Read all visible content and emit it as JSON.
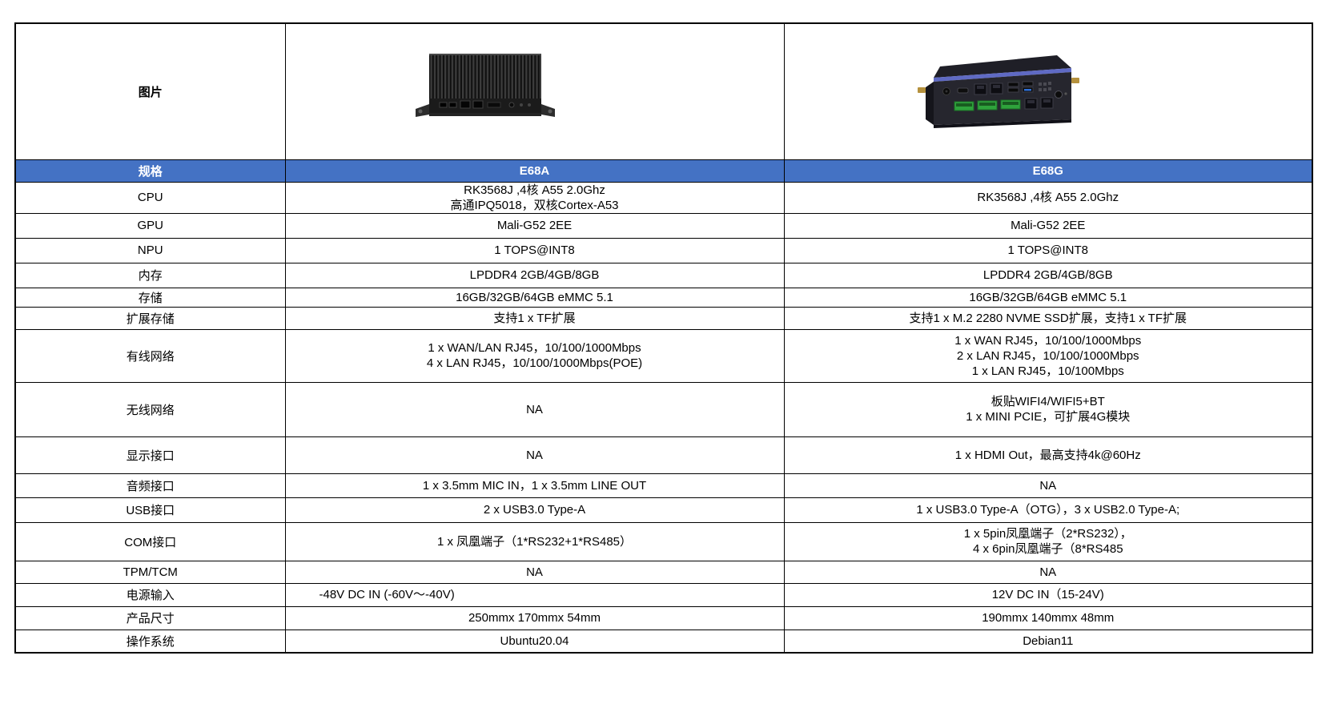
{
  "table": {
    "image_label": "图片",
    "header": {
      "spec": "规格",
      "e68a": "E68A",
      "e68g": "E68G"
    },
    "rows": [
      {
        "label": "CPU",
        "a": [
          "RK3568J ,4核 A55 2.0Ghz",
          "高通IPQ5018，双核Cortex-A53"
        ],
        "b": [
          "RK3568J ,4核 A55 2.0Ghz"
        ]
      },
      {
        "label": "GPU",
        "a": [
          "Mali-G52 2EE"
        ],
        "b": [
          "Mali-G52 2EE"
        ]
      },
      {
        "label": "NPU",
        "a": [
          "1 TOPS@INT8"
        ],
        "b": [
          "1 TOPS@INT8"
        ]
      },
      {
        "label": "内存",
        "a": [
          "LPDDR4 2GB/4GB/8GB"
        ],
        "b": [
          "LPDDR4 2GB/4GB/8GB"
        ]
      },
      {
        "label": "存储",
        "a": [
          "16GB/32GB/64GB eMMC 5.1"
        ],
        "b": [
          "16GB/32GB/64GB eMMC 5.1"
        ]
      },
      {
        "label": "扩展存储",
        "a": [
          "支持1 x TF扩展"
        ],
        "b": [
          "支持1 x M.2 2280 NVME SSD扩展，支持1 x TF扩展"
        ]
      },
      {
        "label": "有线网络",
        "a": [
          "1 x WAN/LAN RJ45，10/100/1000Mbps",
          "4 x LAN RJ45，10/100/1000Mbps(POE)"
        ],
        "b": [
          "1 x WAN RJ45，10/100/1000Mbps",
          "2 x LAN RJ45，10/100/1000Mbps",
          "1 x LAN RJ45，10/100Mbps"
        ]
      },
      {
        "label": "无线网络",
        "a": [
          "NA"
        ],
        "b": [
          "板贴WIFI4/WIFI5+BT",
          "1 x MINI PCIE，可扩展4G模块"
        ]
      },
      {
        "label": "显示接口",
        "a": [
          "NA"
        ],
        "b": [
          "1 x HDMI Out，最高支持4k@60Hz"
        ]
      },
      {
        "label": "音频接口",
        "a": [
          "1 x 3.5mm MIC IN，1 x 3.5mm LINE OUT"
        ],
        "b": [
          "NA"
        ]
      },
      {
        "label": "USB接口",
        "a": [
          "2 x USB3.0 Type-A"
        ],
        "b": [
          "1 x USB3.0 Type-A（OTG），3 x USB2.0 Type-A;"
        ]
      },
      {
        "label": "COM接口",
        "a": [
          "1 x 凤凰端子（1*RS232+1*RS485）"
        ],
        "b": [
          "1 x 5pin凤凰端子（2*RS232），",
          "4 x 6pin凤凰端子（8*RS485"
        ]
      },
      {
        "label": "TPM/TCM",
        "a": [
          "NA"
        ],
        "b": [
          "NA"
        ]
      },
      {
        "label": "电源输入",
        "a": [
          "-48V DC IN (-60V～-40V)"
        ],
        "b": [
          "12V DC IN（15-24V)"
        ]
      },
      {
        "label": "产品尺寸",
        "a": [
          "250mmx 170mmx 54mm"
        ],
        "b": [
          "190mmx 140mmx 48mm"
        ]
      },
      {
        "label": "操作系统",
        "a": [
          "Ubuntu20.04"
        ],
        "b": [
          "Debian11"
        ]
      }
    ]
  },
  "colors": {
    "header_bg": "#4472C4",
    "header_text": "#FFFFFF",
    "border": "#000000",
    "e68g_trim_blue": "#5F6AC4",
    "terminal_green": "#2FA33C",
    "antenna_gold": "#B5913D"
  }
}
